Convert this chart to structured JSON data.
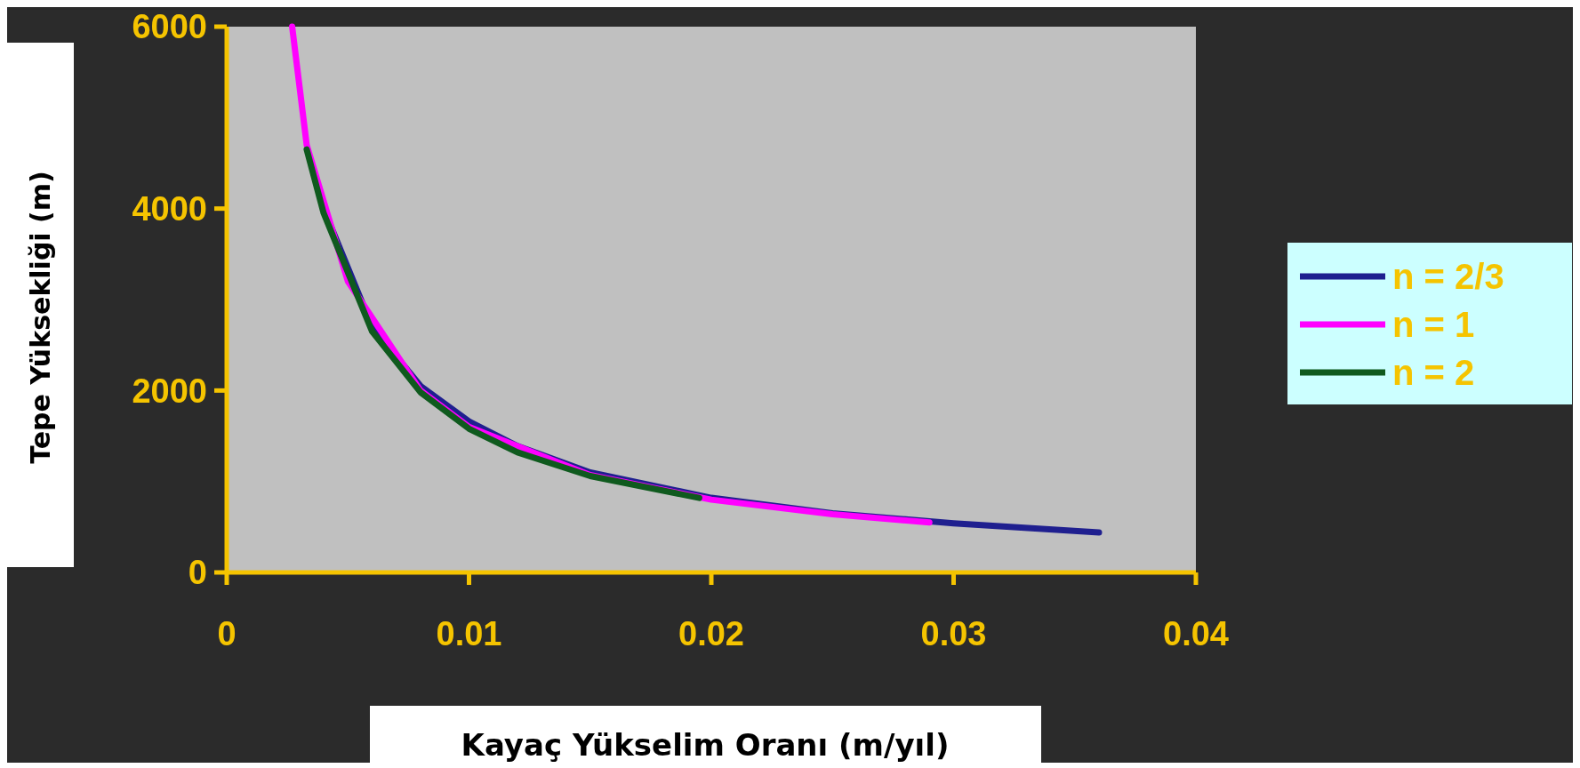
{
  "chart_data": {
    "type": "line",
    "xlabel": "Kayaç Yükselim Oranı (m/yıl)",
    "ylabel": "Tepe Yüksekliği (m)",
    "xlim": [
      0,
      0.04
    ],
    "xticks": [
      0,
      0.01,
      0.02,
      0.03,
      0.04
    ],
    "ylim": [
      0,
      6000
    ],
    "yticks": [
      0,
      2000,
      4000,
      6000
    ],
    "legend": "right",
    "grid": false,
    "marker": "none",
    "line_style": "solid",
    "series": [
      {
        "name": "n = 2/3",
        "color": "#1f1f8f",
        "x": [
          0.004,
          0.006,
          0.008,
          0.01,
          0.012,
          0.015,
          0.02,
          0.025,
          0.03,
          0.036
        ],
        "values": [
          4000,
          2700,
          2050,
          1660,
          1390,
          1100,
          820,
          650,
          540,
          440
        ]
      },
      {
        "name": "n = 1",
        "color": "#ff00ff",
        "x": [
          0.0027,
          0.0033,
          0.005,
          0.008,
          0.01,
          0.015,
          0.02,
          0.025,
          0.029
        ],
        "values": [
          6000,
          4700,
          3200,
          2000,
          1600,
          1070,
          800,
          640,
          550
        ]
      },
      {
        "name": "n = 2",
        "color": "#0f5a1e",
        "x": [
          0.0033,
          0.004,
          0.006,
          0.008,
          0.01,
          0.012,
          0.015,
          0.0195
        ],
        "values": [
          4650,
          3950,
          2650,
          1980,
          1580,
          1320,
          1060,
          820
        ]
      }
    ]
  }
}
